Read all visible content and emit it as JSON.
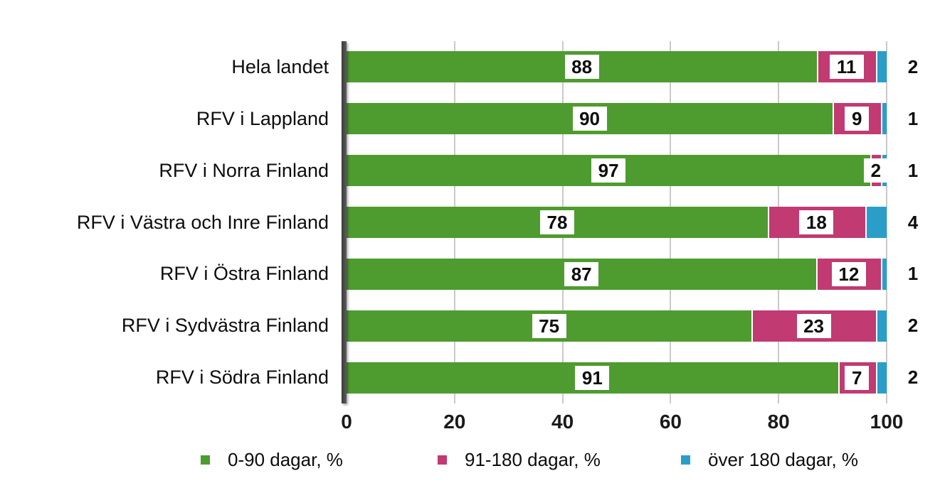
{
  "chart_data": {
    "type": "bar",
    "orientation": "horizontal_stacked",
    "title": "",
    "categories": [
      "Hela landet",
      "RFV i Lappland",
      "RFV i Norra Finland",
      "RFV i Västra och Inre Finland",
      "RFV i Östra Finland",
      "RFV i Sydvästra Finland",
      "RFV i Södra Finland"
    ],
    "series": [
      {
        "name": "0-90 dagar, %",
        "color": "#4e9b2f",
        "label_style": "boxed_inside",
        "values": [
          88,
          90,
          97,
          78,
          87,
          75,
          91
        ]
      },
      {
        "name": "91-180 dagar, %",
        "color": "#c13a72",
        "label_style": "boxed_inside",
        "values": [
          11,
          9,
          2,
          18,
          12,
          23,
          7
        ]
      },
      {
        "name": "över 180 dagar, %",
        "color": "#2a9ec9",
        "label_style": "outside_right",
        "values": [
          2,
          1,
          1,
          4,
          1,
          2,
          2
        ]
      }
    ],
    "x_ticks": [
      0,
      20,
      40,
      60,
      80,
      100
    ],
    "xlim": [
      0,
      100
    ],
    "grid": "vertical_light_gray_behind_bars",
    "legend_position": "bottom",
    "axis_line_color": "#3a3a3a"
  }
}
